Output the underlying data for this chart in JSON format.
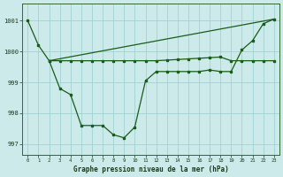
{
  "background_color": "#cceaea",
  "grid_color": "#99cccc",
  "line_color": "#1a5c1a",
  "title": "Graphe pression niveau de la mer (hPa)",
  "xlim": [
    -0.5,
    23.5
  ],
  "ylim": [
    996.65,
    1001.55
  ],
  "yticks": [
    997,
    998,
    999,
    1000,
    1001
  ],
  "xticks": [
    0,
    1,
    2,
    3,
    4,
    5,
    6,
    7,
    8,
    9,
    10,
    11,
    12,
    13,
    14,
    15,
    16,
    17,
    18,
    19,
    20,
    21,
    22,
    23
  ],
  "line1_x": [
    0,
    1,
    2,
    3,
    4,
    5,
    6,
    7,
    8,
    9,
    10,
    11,
    12,
    13,
    14,
    15,
    16,
    17,
    18,
    19,
    20,
    21,
    22,
    23
  ],
  "line1_y": [
    1001.0,
    1000.2,
    999.7,
    998.8,
    998.6,
    997.6,
    997.6,
    997.6,
    997.3,
    997.2,
    997.55,
    999.05,
    999.35,
    999.35,
    999.35,
    999.35,
    999.35,
    999.4,
    999.35,
    999.35,
    1000.05,
    1000.35,
    1000.9,
    1001.05
  ],
  "line2_x": [
    2,
    3,
    4,
    5,
    6,
    7,
    8,
    9,
    10,
    11,
    12,
    13,
    14,
    15,
    16,
    17,
    18,
    19,
    20,
    21,
    22,
    23
  ],
  "line2_y": [
    999.7,
    999.7,
    999.7,
    999.7,
    999.7,
    999.7,
    999.7,
    999.7,
    999.7,
    999.7,
    999.7,
    999.72,
    999.74,
    999.76,
    999.78,
    999.8,
    999.82,
    999.7,
    999.7,
    999.7,
    999.7,
    999.7
  ],
  "line3_x": [
    2,
    23
  ],
  "line3_y": [
    999.7,
    1001.05
  ]
}
